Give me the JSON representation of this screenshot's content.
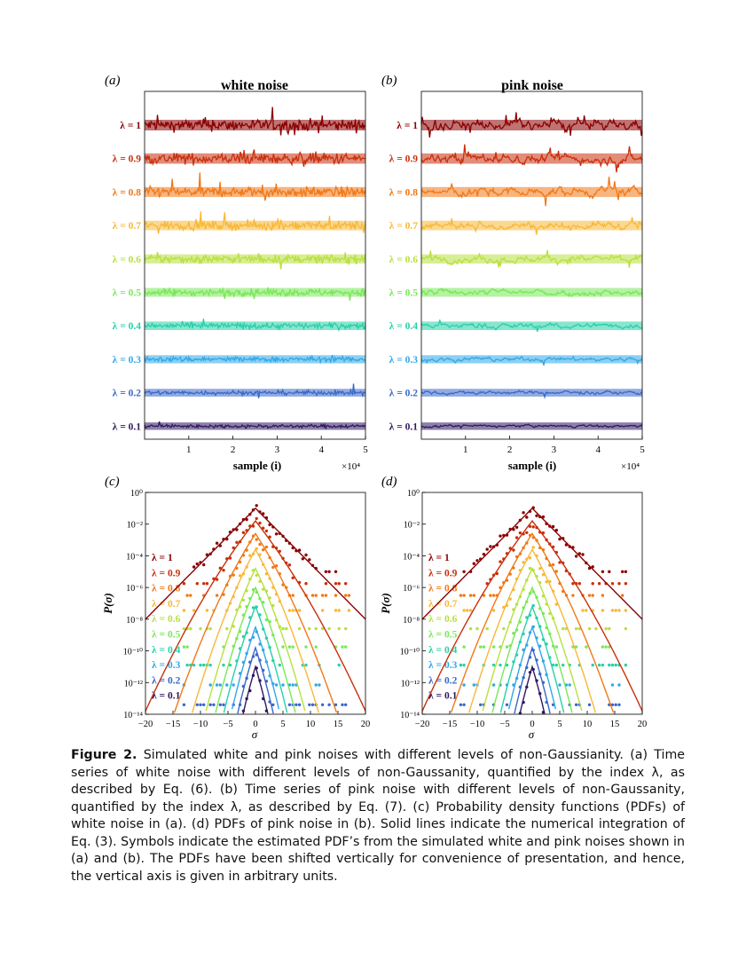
{
  "figure": {
    "panels": {
      "a": {
        "letter": "(a)",
        "title": "white noise"
      },
      "b": {
        "letter": "(b)",
        "title": "pink noise"
      },
      "c": {
        "letter": "(c)"
      },
      "d": {
        "letter": "(d)"
      }
    },
    "timeseries_xlabel": "sample (i)",
    "timeseries_xticks": [
      "1",
      "2",
      "3",
      "4",
      "5"
    ],
    "timeseries_multiplier": "×10⁴",
    "pdf_xlabel": "σ",
    "pdf_ylabel": "P(σ)",
    "pdf_xticks": [
      "−20",
      "−15",
      "−10",
      "−5",
      "0",
      "5",
      "10",
      "15",
      "20"
    ],
    "pdf_yticks": [
      "10⁰",
      "10⁻²",
      "10⁻⁴",
      "10⁻⁶",
      "10⁻⁸",
      "10⁻¹⁰",
      "10⁻¹²",
      "10⁻¹⁴"
    ],
    "lambda_labels": [
      "λ = 1",
      "λ = 0.9",
      "λ = 0.8",
      "λ = 0.7",
      "λ = 0.6",
      "λ = 0.5",
      "λ = 0.4",
      "λ = 0.3",
      "λ = 0.2",
      "λ = 0.1"
    ],
    "series_colors": [
      "#8b0000",
      "#c8300c",
      "#f07818",
      "#f8b838",
      "#b8e040",
      "#78e858",
      "#28d0a8",
      "#30a8e8",
      "#3868c8",
      "#301860"
    ]
  },
  "chart_data": [
    {
      "panel": "a",
      "type": "line",
      "title": "white noise",
      "xlabel": "sample (i)",
      "xlim": [
        0,
        50000
      ],
      "lambda": [
        1,
        0.9,
        0.8,
        0.7,
        0.6,
        0.5,
        0.4,
        0.3,
        0.2,
        0.1
      ]
    },
    {
      "panel": "b",
      "type": "line",
      "title": "pink noise",
      "xlabel": "sample (i)",
      "xlim": [
        0,
        50000
      ],
      "lambda": [
        1,
        0.9,
        0.8,
        0.7,
        0.6,
        0.5,
        0.4,
        0.3,
        0.2,
        0.1
      ]
    },
    {
      "panel": "c",
      "type": "scatter",
      "xlabel": "σ",
      "ylabel": "P(σ)",
      "xlim": [
        -20,
        20
      ],
      "ylim_log10": [
        -14,
        0
      ],
      "yscale": "log",
      "lambda": [
        1,
        0.9,
        0.8,
        0.7,
        0.6,
        0.5,
        0.4,
        0.3,
        0.2,
        0.1
      ],
      "peak_log10": [
        -1,
        -1.8,
        -2.6,
        -3.6,
        -4.8,
        -6.0,
        -7.2,
        -8.5,
        -9.8,
        -11.0
      ]
    },
    {
      "panel": "d",
      "type": "scatter",
      "xlabel": "σ",
      "ylabel": "P(σ)",
      "xlim": [
        -20,
        20
      ],
      "ylim_log10": [
        -14,
        0
      ],
      "yscale": "log",
      "lambda": [
        1,
        0.9,
        0.8,
        0.7,
        0.6,
        0.5,
        0.4,
        0.3,
        0.2,
        0.1
      ],
      "peak_log10": [
        -1,
        -1.8,
        -2.6,
        -3.6,
        -4.8,
        -6.0,
        -7.2,
        -8.5,
        -9.8,
        -11.0
      ]
    }
  ],
  "caption": {
    "label": "Figure 2.",
    "text": "Simulated white and pink noises with different levels of non-Gaussianity. (a) Time series of white noise with different levels of non-Gaussanity, quantified by the index λ, as described by Eq. (6). (b) Time series of pink noise with different levels of non-Gaussanity, quantified by the index λ, as described by Eq. (7). (c) Probability density functions (PDFs) of white noise in (a). (d) PDFs of pink noise in (b). Solid lines indicate the numerical integration of Eq. (3). Symbols indicate the estimated PDF’s from the simulated white and pink noises shown in (a) and (b). The PDFs have been shifted vertically for convenience of presentation, and hence, the vertical axis is given in arbitrary units."
  }
}
